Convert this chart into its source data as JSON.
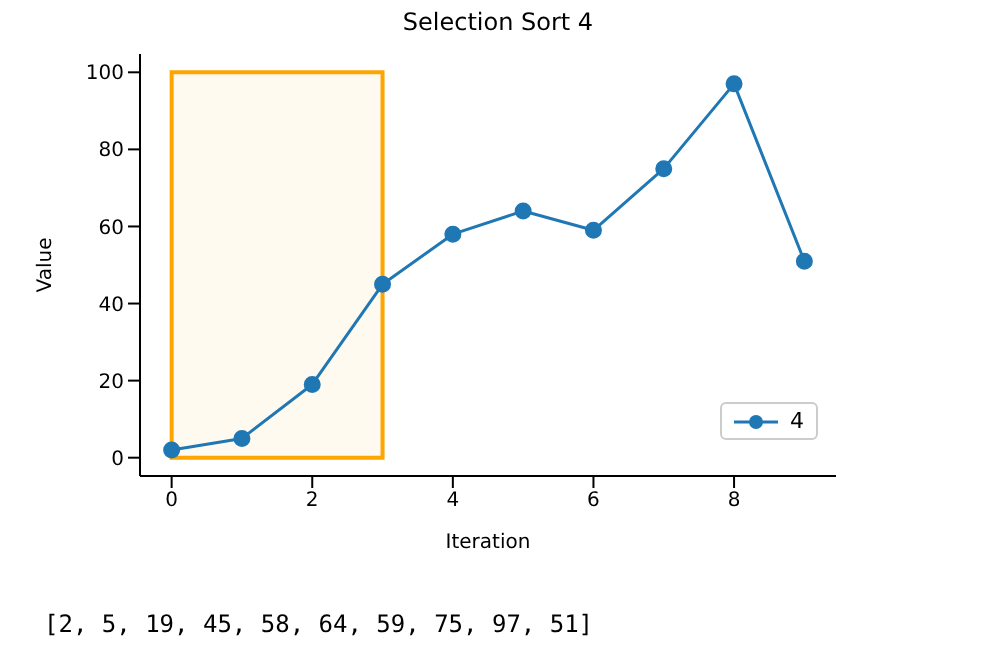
{
  "chart_data": {
    "type": "line",
    "title": "Selection Sort 4",
    "xlabel": "Iteration",
    "ylabel": "Value",
    "x": [
      0,
      1,
      2,
      3,
      4,
      5,
      6,
      7,
      8,
      9
    ],
    "series": [
      {
        "name": "4",
        "color": "#1f77b4",
        "values": [
          2,
          5,
          19,
          45,
          58,
          64,
          59,
          75,
          97,
          51
        ]
      }
    ],
    "xlim": [
      -0.45,
      9.45
    ],
    "xticks": [
      0,
      2,
      4,
      6,
      8
    ],
    "ylim": [
      -4.75,
      104.75
    ],
    "yticks": [
      0,
      20,
      40,
      60,
      80,
      100
    ],
    "bands": [
      {
        "axis": "x",
        "from": 0,
        "to": 3,
        "color": "#ffa500"
      }
    ],
    "annotations": [
      "[2, 5, 19, 45, 58, 64, 59, 75, 97, 51]"
    ],
    "grid": false,
    "legend": "bottom right",
    "marker": "circle",
    "line_style": "solid"
  }
}
